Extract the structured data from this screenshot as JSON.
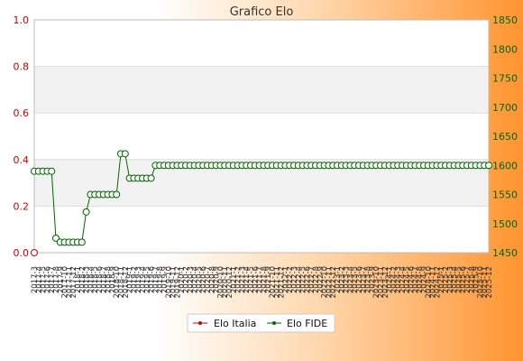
{
  "chart_data": {
    "type": "line",
    "title": "Grafico Elo",
    "left_axis": {
      "min": 0,
      "max": 1.0,
      "ticks": [
        "0.0",
        "0.2",
        "0.4",
        "0.6",
        "0.8",
        "1.0"
      ],
      "color": "#cc0000"
    },
    "right_axis": {
      "min": 1450,
      "max": 1850,
      "ticks": [
        "1450",
        "1500",
        "1550",
        "1600",
        "1650",
        "1700",
        "1750",
        "1800",
        "1850"
      ],
      "color": "#006600"
    },
    "grid": true,
    "legend_position": "bottom-center",
    "x_labels": [
      "2017-3",
      "2017-4",
      "2017-5",
      "2017-6",
      "2017-7",
      "2017-8",
      "2017-9",
      "2017-10",
      "2017-11",
      "2017-12",
      "2018-1",
      "2018-2",
      "2018-3",
      "2018-4",
      "2018-5",
      "2018-6",
      "2018-7",
      "2018-8",
      "2018-9",
      "2018-10",
      "2018-11",
      "2018-12",
      "2019-1",
      "2019-2",
      "2019-3",
      "2019-4",
      "2019-5",
      "2019-6",
      "2019-7",
      "2019-8",
      "2019-9",
      "2019-10",
      "2019-11",
      "2019-12",
      "2020-1",
      "2020-2",
      "2020-3",
      "2020-4",
      "2020-5",
      "2020-6",
      "2020-7",
      "2020-8",
      "2020-9",
      "2020-10",
      "2020-11",
      "2020-12",
      "2021-1",
      "2021-2",
      "2021-3",
      "2021-4",
      "2021-5",
      "2021-6",
      "2021-7",
      "2021-8",
      "2021-9",
      "2021-10",
      "2021-11",
      "2021-12",
      "2022-1",
      "2022-2",
      "2022-3",
      "2022-4",
      "2022-5",
      "2022-6",
      "2022-7",
      "2022-8",
      "2022-9",
      "2022-10",
      "2022-11",
      "2022-12",
      "2023-1",
      "2023-2",
      "2023-3",
      "2023-4",
      "2023-5",
      "2023-6",
      "2023-7",
      "2023-8",
      "2023-9",
      "2023-10",
      "2023-11",
      "2023-12",
      "2024-1",
      "2024-2",
      "2024-3",
      "2024-4",
      "2024-5",
      "2024-6",
      "2024-7",
      "2024-8",
      "2024-9",
      "2024-10",
      "2024-11",
      "2024-12",
      "2025-1",
      "2025-2",
      "2025-3",
      "2025-4",
      "2025-5",
      "2025-6",
      "2025-7",
      "2025-8",
      "2025-9",
      "2025-10",
      "2025-11",
      "2025-12"
    ],
    "series": [
      {
        "name": "Elo Italia",
        "color": "#cc0000",
        "axis": "left",
        "values": [
          0.0
        ]
      },
      {
        "name": "Elo FIDE",
        "color": "#006600",
        "axis": "right",
        "values": [
          1590,
          1590,
          1590,
          1590,
          1590,
          1475,
          1468,
          1468,
          1468,
          1468,
          1468,
          1468,
          1520,
          1550,
          1550,
          1550,
          1550,
          1550,
          1550,
          1550,
          1620,
          1620,
          1578,
          1578,
          1578,
          1578,
          1578,
          1578,
          1600,
          1600,
          1600,
          1600,
          1600,
          1600,
          1600,
          1600,
          1600,
          1600,
          1600,
          1600,
          1600,
          1600,
          1600,
          1600,
          1600,
          1600,
          1600,
          1600,
          1600,
          1600,
          1600,
          1600,
          1600,
          1600,
          1600,
          1600,
          1600,
          1600,
          1600,
          1600,
          1600,
          1600,
          1600,
          1600,
          1600,
          1600,
          1600,
          1600,
          1600,
          1600,
          1600,
          1600,
          1600,
          1600,
          1600,
          1600,
          1600,
          1600,
          1600,
          1600,
          1600,
          1600,
          1600,
          1600,
          1600,
          1600,
          1600,
          1600,
          1600,
          1600,
          1600,
          1600,
          1600,
          1600,
          1600,
          1600,
          1600,
          1600,
          1600,
          1600,
          1600,
          1600,
          1600,
          1600,
          1600,
          1600
        ]
      }
    ]
  }
}
